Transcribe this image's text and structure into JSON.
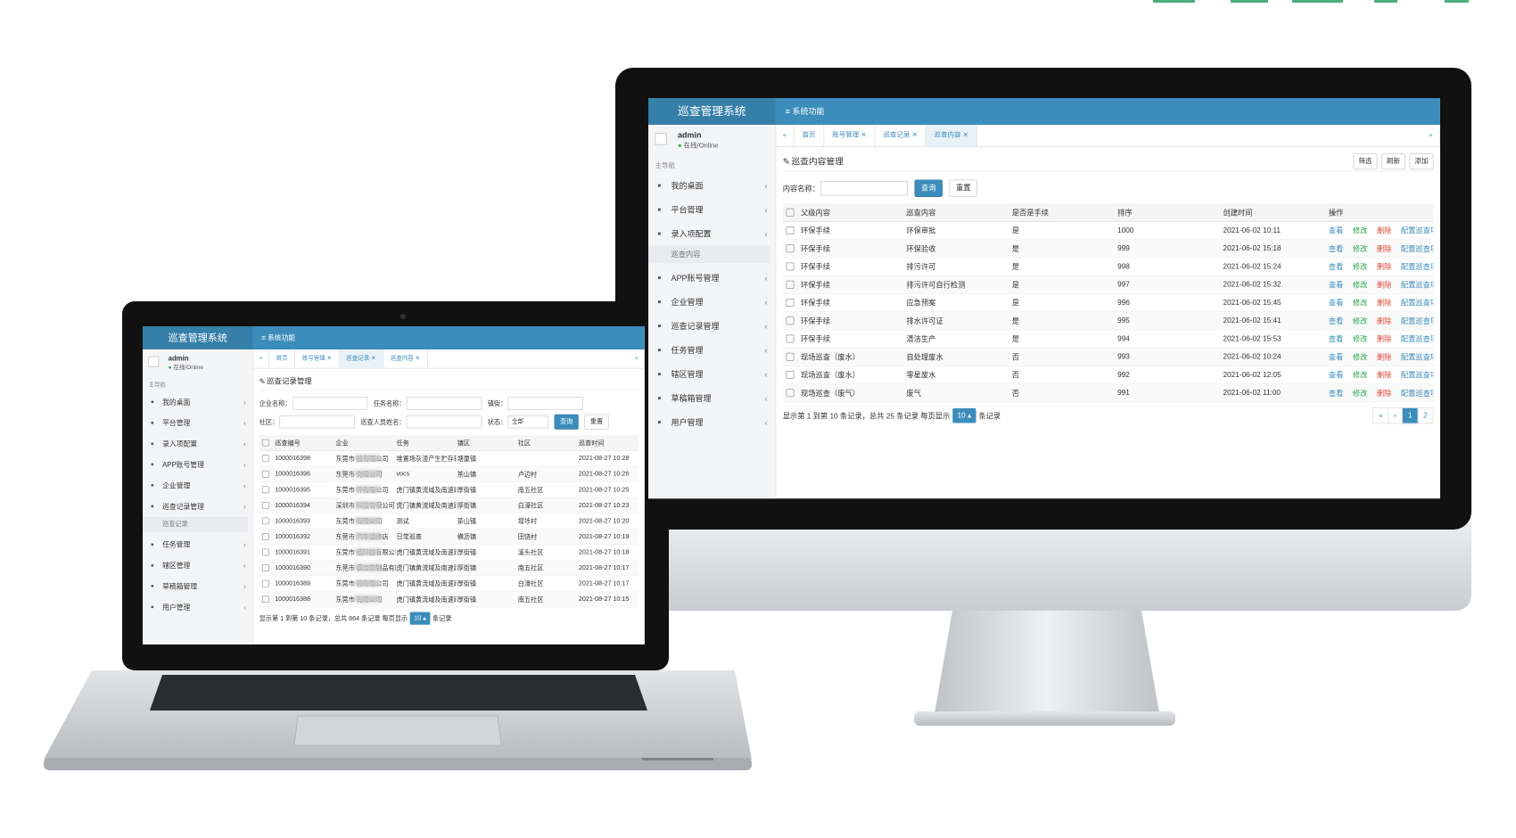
{
  "monitor": {
    "brand": "巡查管理系统",
    "topnav": "系统功能",
    "user": {
      "name": "admin",
      "status": "在线/Online"
    },
    "nav_label": "主导航",
    "menu": [
      {
        "label": "我的桌面"
      },
      {
        "label": "平台管理"
      },
      {
        "label": "录入项配置",
        "children": [
          "巡查内容"
        ]
      },
      {
        "label": "APP账号管理"
      },
      {
        "label": "企业管理"
      },
      {
        "label": "巡查记录管理"
      },
      {
        "label": "任务管理"
      },
      {
        "label": "辖区管理"
      },
      {
        "label": "草稿箱管理"
      },
      {
        "label": "用户管理"
      }
    ],
    "tabs": [
      "首页",
      "账号管理",
      "巡查记录",
      "巡查内容"
    ],
    "active_tab": 3,
    "page_title": "巡查内容管理",
    "toolbar": [
      "筛选",
      "刷新",
      "添加"
    ],
    "search": {
      "fields": [
        {
          "label": "内容名称："
        }
      ],
      "buttons": [
        "查询",
        "重置"
      ]
    },
    "columns": [
      "父级内容",
      "巡查内容",
      "是否是手续",
      "排序",
      "创建时间",
      "操作"
    ],
    "rows": [
      [
        "环保手续",
        "环保审批",
        "是",
        "1000",
        "2021-06-02 10:11"
      ],
      [
        "环保手续",
        "环保验收",
        "是",
        "999",
        "2021-06-02 15:18"
      ],
      [
        "环保手续",
        "排污许可",
        "是",
        "998",
        "2021-06-02 15:24"
      ],
      [
        "环保手续",
        "排污许可自行检测",
        "是",
        "997",
        "2021-06-02 15:32"
      ],
      [
        "环保手续",
        "应急预案",
        "是",
        "996",
        "2021-06-02 15:45"
      ],
      [
        "环保手续",
        "排水许可证",
        "是",
        "995",
        "2021-06-02 15:41"
      ],
      [
        "环保手续",
        "清洁生产",
        "是",
        "994",
        "2021-06-02 15:53"
      ],
      [
        "现场巡查（废水）",
        "自处理废水",
        "否",
        "993",
        "2021-06-02 10:24"
      ],
      [
        "现场巡查（废水）",
        "零星废水",
        "否",
        "992",
        "2021-06-02 12:05"
      ],
      [
        "现场巡查（废气）",
        "废气",
        "否",
        "991",
        "2021-06-02 11:00"
      ]
    ],
    "actions": [
      "查看",
      "修改",
      "删除",
      "配置巡查项目"
    ],
    "footer": {
      "text": "显示第 1 到第 10 条记录，总共 25 条记录 每页显示",
      "page_size": "10",
      "suffix": "条记录"
    },
    "pages": [
      "«",
      "‹",
      "1",
      "2"
    ],
    "active_page": 2
  },
  "laptop": {
    "brand": "巡查管理系统",
    "topnav": "系统功能",
    "user": {
      "name": "admin",
      "status": "在线/Online"
    },
    "nav_label": "主导航",
    "menu": [
      {
        "label": "我的桌面"
      },
      {
        "label": "平台管理"
      },
      {
        "label": "录入项配置"
      },
      {
        "label": "APP账号管理"
      },
      {
        "label": "企业管理"
      },
      {
        "label": "巡查记录管理",
        "children": [
          "巡查记录"
        ]
      },
      {
        "label": "任务管理"
      },
      {
        "label": "辖区管理"
      },
      {
        "label": "草稿箱管理"
      },
      {
        "label": "用户管理"
      }
    ],
    "tabs": [
      "首页",
      "账号管理",
      "巡查记录",
      "巡查内容"
    ],
    "active_tab": 2,
    "page_title": "巡查记录管理",
    "search": {
      "fields": [
        {
          "label": "企业名称："
        },
        {
          "label": "任务名称："
        },
        {
          "label": "镇街："
        },
        {
          "label": "社区："
        },
        {
          "label": "巡查人员姓名："
        },
        {
          "label": "状态：",
          "value": "全部"
        }
      ],
      "buttons": [
        "查询",
        "重置"
      ]
    },
    "columns": [
      "巡查编号",
      "企业",
      "任务",
      "镇区",
      "社区",
      "巡查时间"
    ],
    "rows": [
      [
        "1000016398",
        "东莞市 技有限公司",
        "堆置场灰渣产生贮存转移处置情况统计",
        "塘厦镇",
        "",
        "2021-08-27 10:28"
      ],
      [
        "1000016396",
        "东莞市 有限公司",
        "vocs",
        "茶山镇",
        "卢边村",
        "2021-08-27 10:26"
      ],
      [
        "1000016395",
        "东莞市 件有限公司",
        "虎门镇黄流域及南速路两旁区域排查",
        "厚街镇",
        "南五社区",
        "2021-08-27 10:25"
      ],
      [
        "1000016394",
        "深圳市 科技有限公司",
        "虎门镇黄流域及南速路两旁区域排查",
        "厚街镇",
        "白濠社区",
        "2021-08-27 10:23"
      ],
      [
        "1000016393",
        "东莞市 有限公司",
        "测试",
        "茶山镇",
        "增埗村",
        "2021-08-27 10:20"
      ],
      [
        "1000016392",
        "东莞市 汽车维修店",
        "日常巡查",
        "横沥镇",
        "田饶村",
        "2021-08-27 10:19"
      ],
      [
        "1000016391",
        "东莞市 纸科技有限公司",
        "虎门镇黄流域及南速路两旁区域排查",
        "厚街镇",
        "溪头社区",
        "2021-08-27 10:18"
      ],
      [
        "1000016390",
        "东莞市 模工艺制品有限公司",
        "虎门镇黄流域及南速路两旁区域排查",
        "厚街镇",
        "南五社区",
        "2021-08-27 10:17"
      ],
      [
        "1000016389",
        "东莞市 程有限公司",
        "虎门镇黄流域及南速路两旁区域排查",
        "厚街镇",
        "白濠社区",
        "2021-08-27 10:17"
      ],
      [
        "1000016388",
        "东莞市 有限公司",
        "虎门镇黄流域及南速路两旁区域排查",
        "厚街镇",
        "南五社区",
        "2021-08-27 10:15"
      ]
    ],
    "footer": {
      "text": "显示第 1 到第 10 条记录，总共 864 条记录 每页显示",
      "page_size": "10",
      "suffix": "条记录"
    }
  }
}
